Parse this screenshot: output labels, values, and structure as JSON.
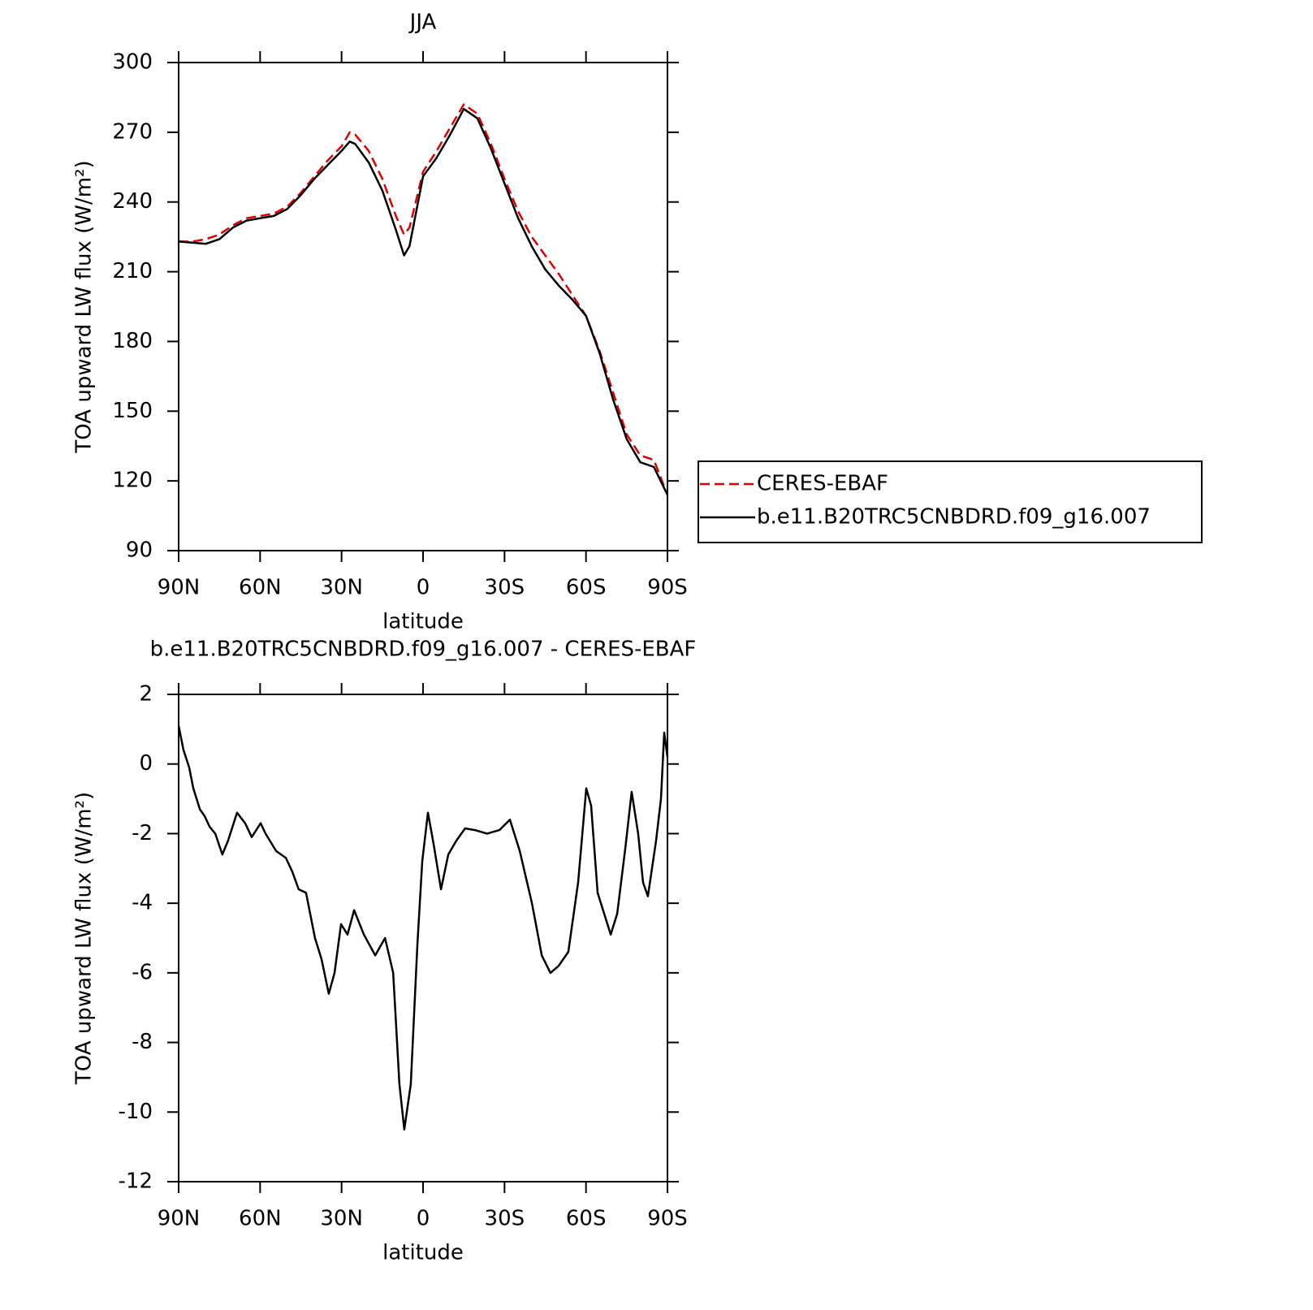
{
  "chart_data": [
    {
      "type": "line",
      "title": "JJA",
      "xlabel": "latitude",
      "ylabel": "TOA upward LW flux (W/m²)",
      "x": [
        90,
        85,
        80,
        75,
        70,
        65,
        60,
        55,
        50,
        45,
        40,
        35,
        30,
        27,
        25,
        20,
        15,
        10,
        7,
        5,
        0,
        -5,
        -10,
        -15,
        -20,
        -25,
        -30,
        -35,
        -40,
        -45,
        -50,
        -55,
        -60,
        -65,
        -70,
        -75,
        -80,
        -85,
        -90
      ],
      "series": [
        {
          "name": "CERES-EBAF",
          "color": "#e00000",
          "style": "dashed",
          "values": [
            223,
            223,
            224,
            226,
            230,
            233,
            234,
            235,
            238,
            244,
            251,
            258,
            264,
            270,
            269,
            262,
            250,
            234,
            226,
            229,
            253,
            262,
            272,
            282,
            278,
            265,
            250,
            236,
            225,
            217,
            209,
            200,
            191,
            176,
            158,
            140,
            131,
            129,
            114
          ]
        },
        {
          "name": "b.e11.B20TRC5CNBDRD.f09_g16.007",
          "color": "#000000",
          "style": "solid",
          "values": [
            223,
            222.5,
            222,
            224,
            229,
            232,
            233,
            234,
            237,
            243,
            250,
            256,
            262,
            266,
            265,
            257,
            245,
            228,
            217,
            221,
            251,
            259,
            269,
            280,
            276,
            263,
            248,
            233,
            221,
            211,
            204,
            198,
            191,
            175,
            155,
            138,
            128,
            126,
            114
          ]
        }
      ],
      "xlim": [
        90,
        -90
      ],
      "xticks": [
        {
          "value": 90,
          "label": "90N"
        },
        {
          "value": 60,
          "label": "60N"
        },
        {
          "value": 30,
          "label": "30N"
        },
        0,
        {
          "value": -30,
          "label": "30S"
        },
        {
          "value": -60,
          "label": "60S"
        },
        {
          "value": -90,
          "label": "90S"
        }
      ],
      "ylim": [
        90,
        300
      ],
      "yticks": [
        90,
        120,
        150,
        180,
        210,
        240,
        270,
        300
      ],
      "legend": "right"
    },
    {
      "type": "line",
      "title": "b.e11.B20TRC5CNBDRD.f09_g16.007 - CERES-EBAF",
      "xlabel": "latitude",
      "ylabel": "TOA upward LW flux (W/m²)",
      "x": [
        90,
        88.2,
        86.1,
        84.6,
        82.2,
        80.4,
        78.6,
        76.5,
        73.9,
        71.8,
        68.5,
        65.5,
        63.1,
        59.8,
        58,
        54.1,
        50.5,
        48.1,
        45.8,
        43.1,
        39.8,
        37.4,
        34.7,
        32.6,
        30.2,
        27.8,
        25.4,
        21.8,
        17.6,
        14,
        11,
        8.7,
        6.9,
        4.5,
        2.1,
        0.3,
        -1.8,
        -3.9,
        -6.6,
        -9.3,
        -12.3,
        -15.5,
        -19.1,
        -23.6,
        -28.1,
        -32,
        -35.6,
        -40.1,
        -43.7,
        -46.9,
        -49.9,
        -53.5,
        -57.1,
        -60.1,
        -61.9,
        -64.3,
        -69.1,
        -71.5,
        -74.5,
        -76.8,
        -79.2,
        -81,
        -82.8,
        -85.8,
        -87.6,
        -88.8,
        -90
      ],
      "values": [
        1.1,
        0.4,
        -0.1,
        -0.7,
        -1.3,
        -1.5,
        -1.8,
        -2,
        -2.6,
        -2.2,
        -1.4,
        -1.7,
        -2.1,
        -1.7,
        -2,
        -2.5,
        -2.7,
        -3.1,
        -3.6,
        -3.7,
        -5,
        -5.6,
        -6.6,
        -6,
        -4.6,
        -4.9,
        -4.2,
        -4.9,
        -5.5,
        -5,
        -6,
        -9.2,
        -10.5,
        -9.2,
        -5.2,
        -2.8,
        -1.4,
        -2.3,
        -3.6,
        -2.6,
        -2.2,
        -1.85,
        -1.9,
        -2,
        -1.9,
        -1.6,
        -2.5,
        -4,
        -5.5,
        -6,
        -5.8,
        -5.4,
        -3.4,
        -0.7,
        -1.2,
        -3.7,
        -4.9,
        -4.3,
        -2.4,
        -0.8,
        -2,
        -3.4,
        -3.8,
        -2.2,
        -1,
        0.9,
        0.2
      ],
      "color": "#000000",
      "xlim": [
        90,
        -90
      ],
      "xticks": [
        {
          "value": 90,
          "label": "90N"
        },
        {
          "value": 60,
          "label": "60N"
        },
        {
          "value": 30,
          "label": "30N"
        },
        0,
        {
          "value": -30,
          "label": "30S"
        },
        {
          "value": -60,
          "label": "60S"
        },
        {
          "value": -90,
          "label": "90S"
        }
      ],
      "ylim": [
        -12,
        2
      ],
      "yticks": [
        -12,
        -10,
        -8,
        -6,
        -4,
        -2,
        0,
        2
      ]
    }
  ]
}
